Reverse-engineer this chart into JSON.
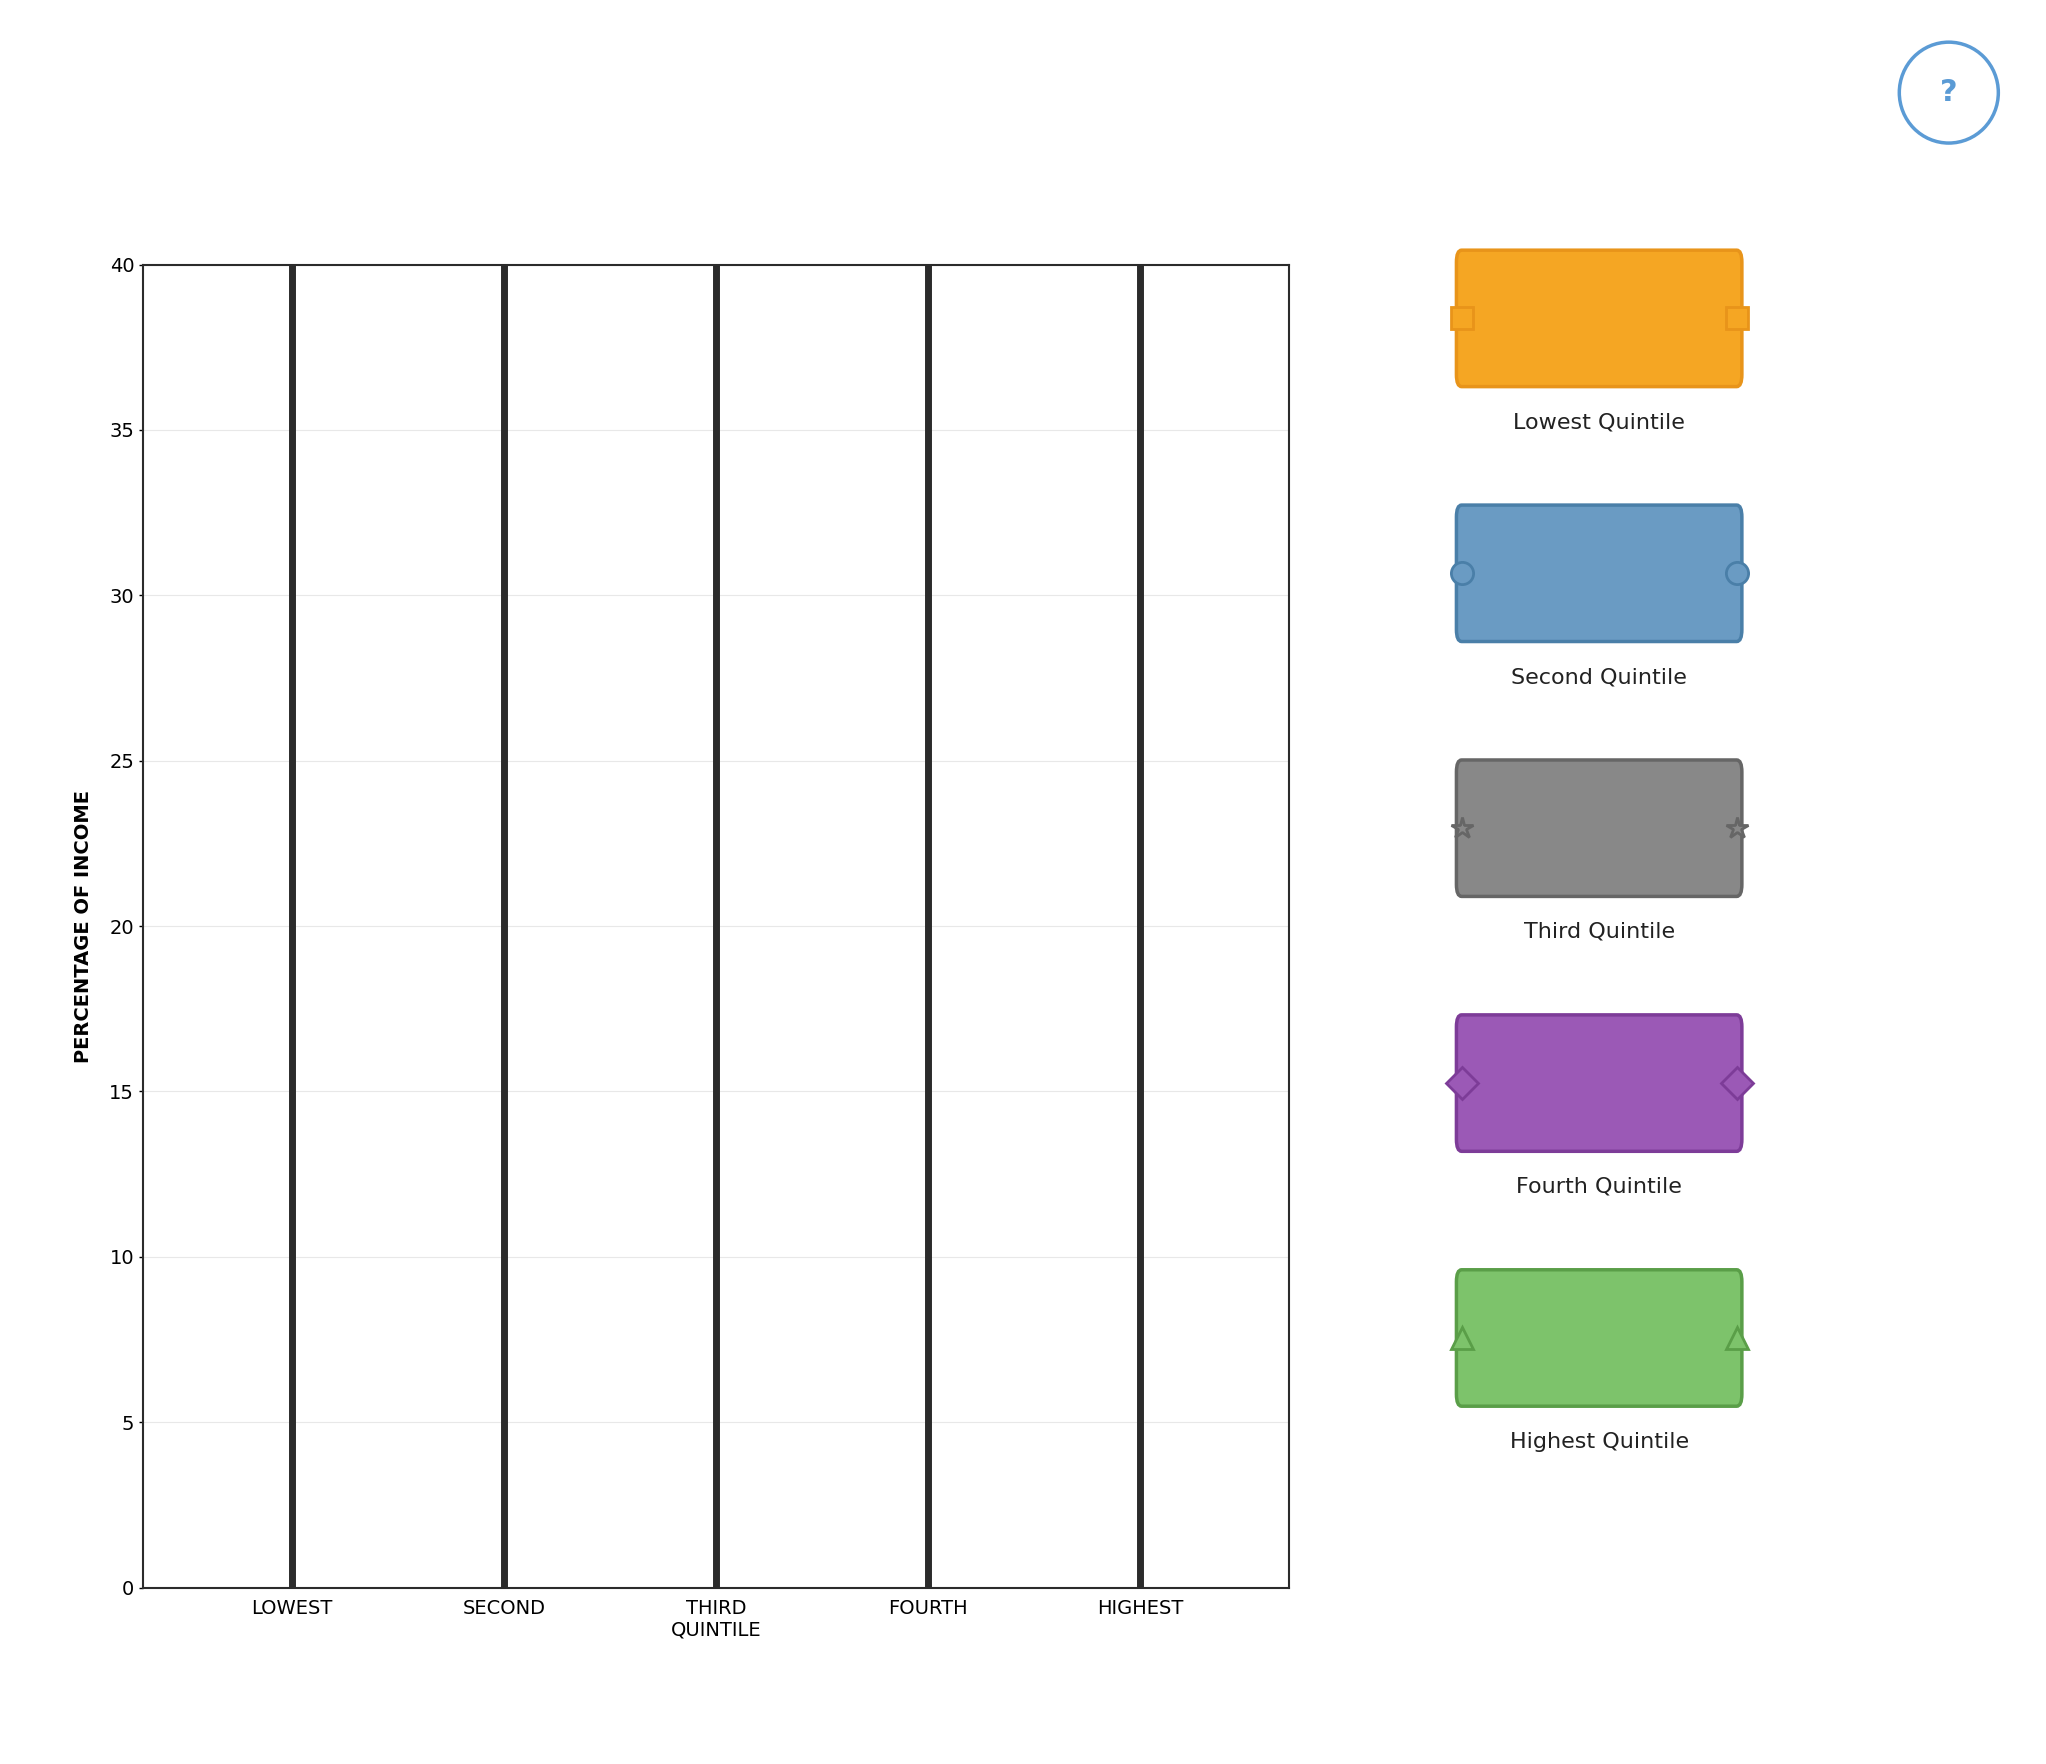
{
  "categories": [
    "LOWEST",
    "SECOND",
    "THIRD\nQUINTILE",
    "FOURTH",
    "HIGHEST"
  ],
  "ylabel": "PERCENTAGE OF INCOME",
  "ylim": [
    0,
    40
  ],
  "yticks": [
    0,
    5,
    10,
    15,
    20,
    25,
    30,
    35,
    40
  ],
  "background_color": "#ffffff",
  "axis_line_color": "#2b2b2b",
  "grid_color": "#e8e8e8",
  "legend_entries": [
    {
      "label": "Lowest Quintile",
      "color": "#f5a623",
      "edge_color": "#e8941a",
      "marker": "s"
    },
    {
      "label": "Second Quintile",
      "color": "#6a9bc3",
      "edge_color": "#4a7fa8",
      "marker": "o"
    },
    {
      "label": "Third Quintile",
      "color": "#888888",
      "edge_color": "#666666",
      "marker": "*"
    },
    {
      "label": "Fourth Quintile",
      "color": "#9b59b6",
      "edge_color": "#7d3c98",
      "marker": "D"
    },
    {
      "label": "Highest Quintile",
      "color": "#7dc36b",
      "edge_color": "#5a9e48",
      "marker": "^"
    }
  ],
  "label_fontsize": 14,
  "tick_fontsize": 14,
  "legend_fontsize": 16,
  "ylabel_fontsize": 14
}
